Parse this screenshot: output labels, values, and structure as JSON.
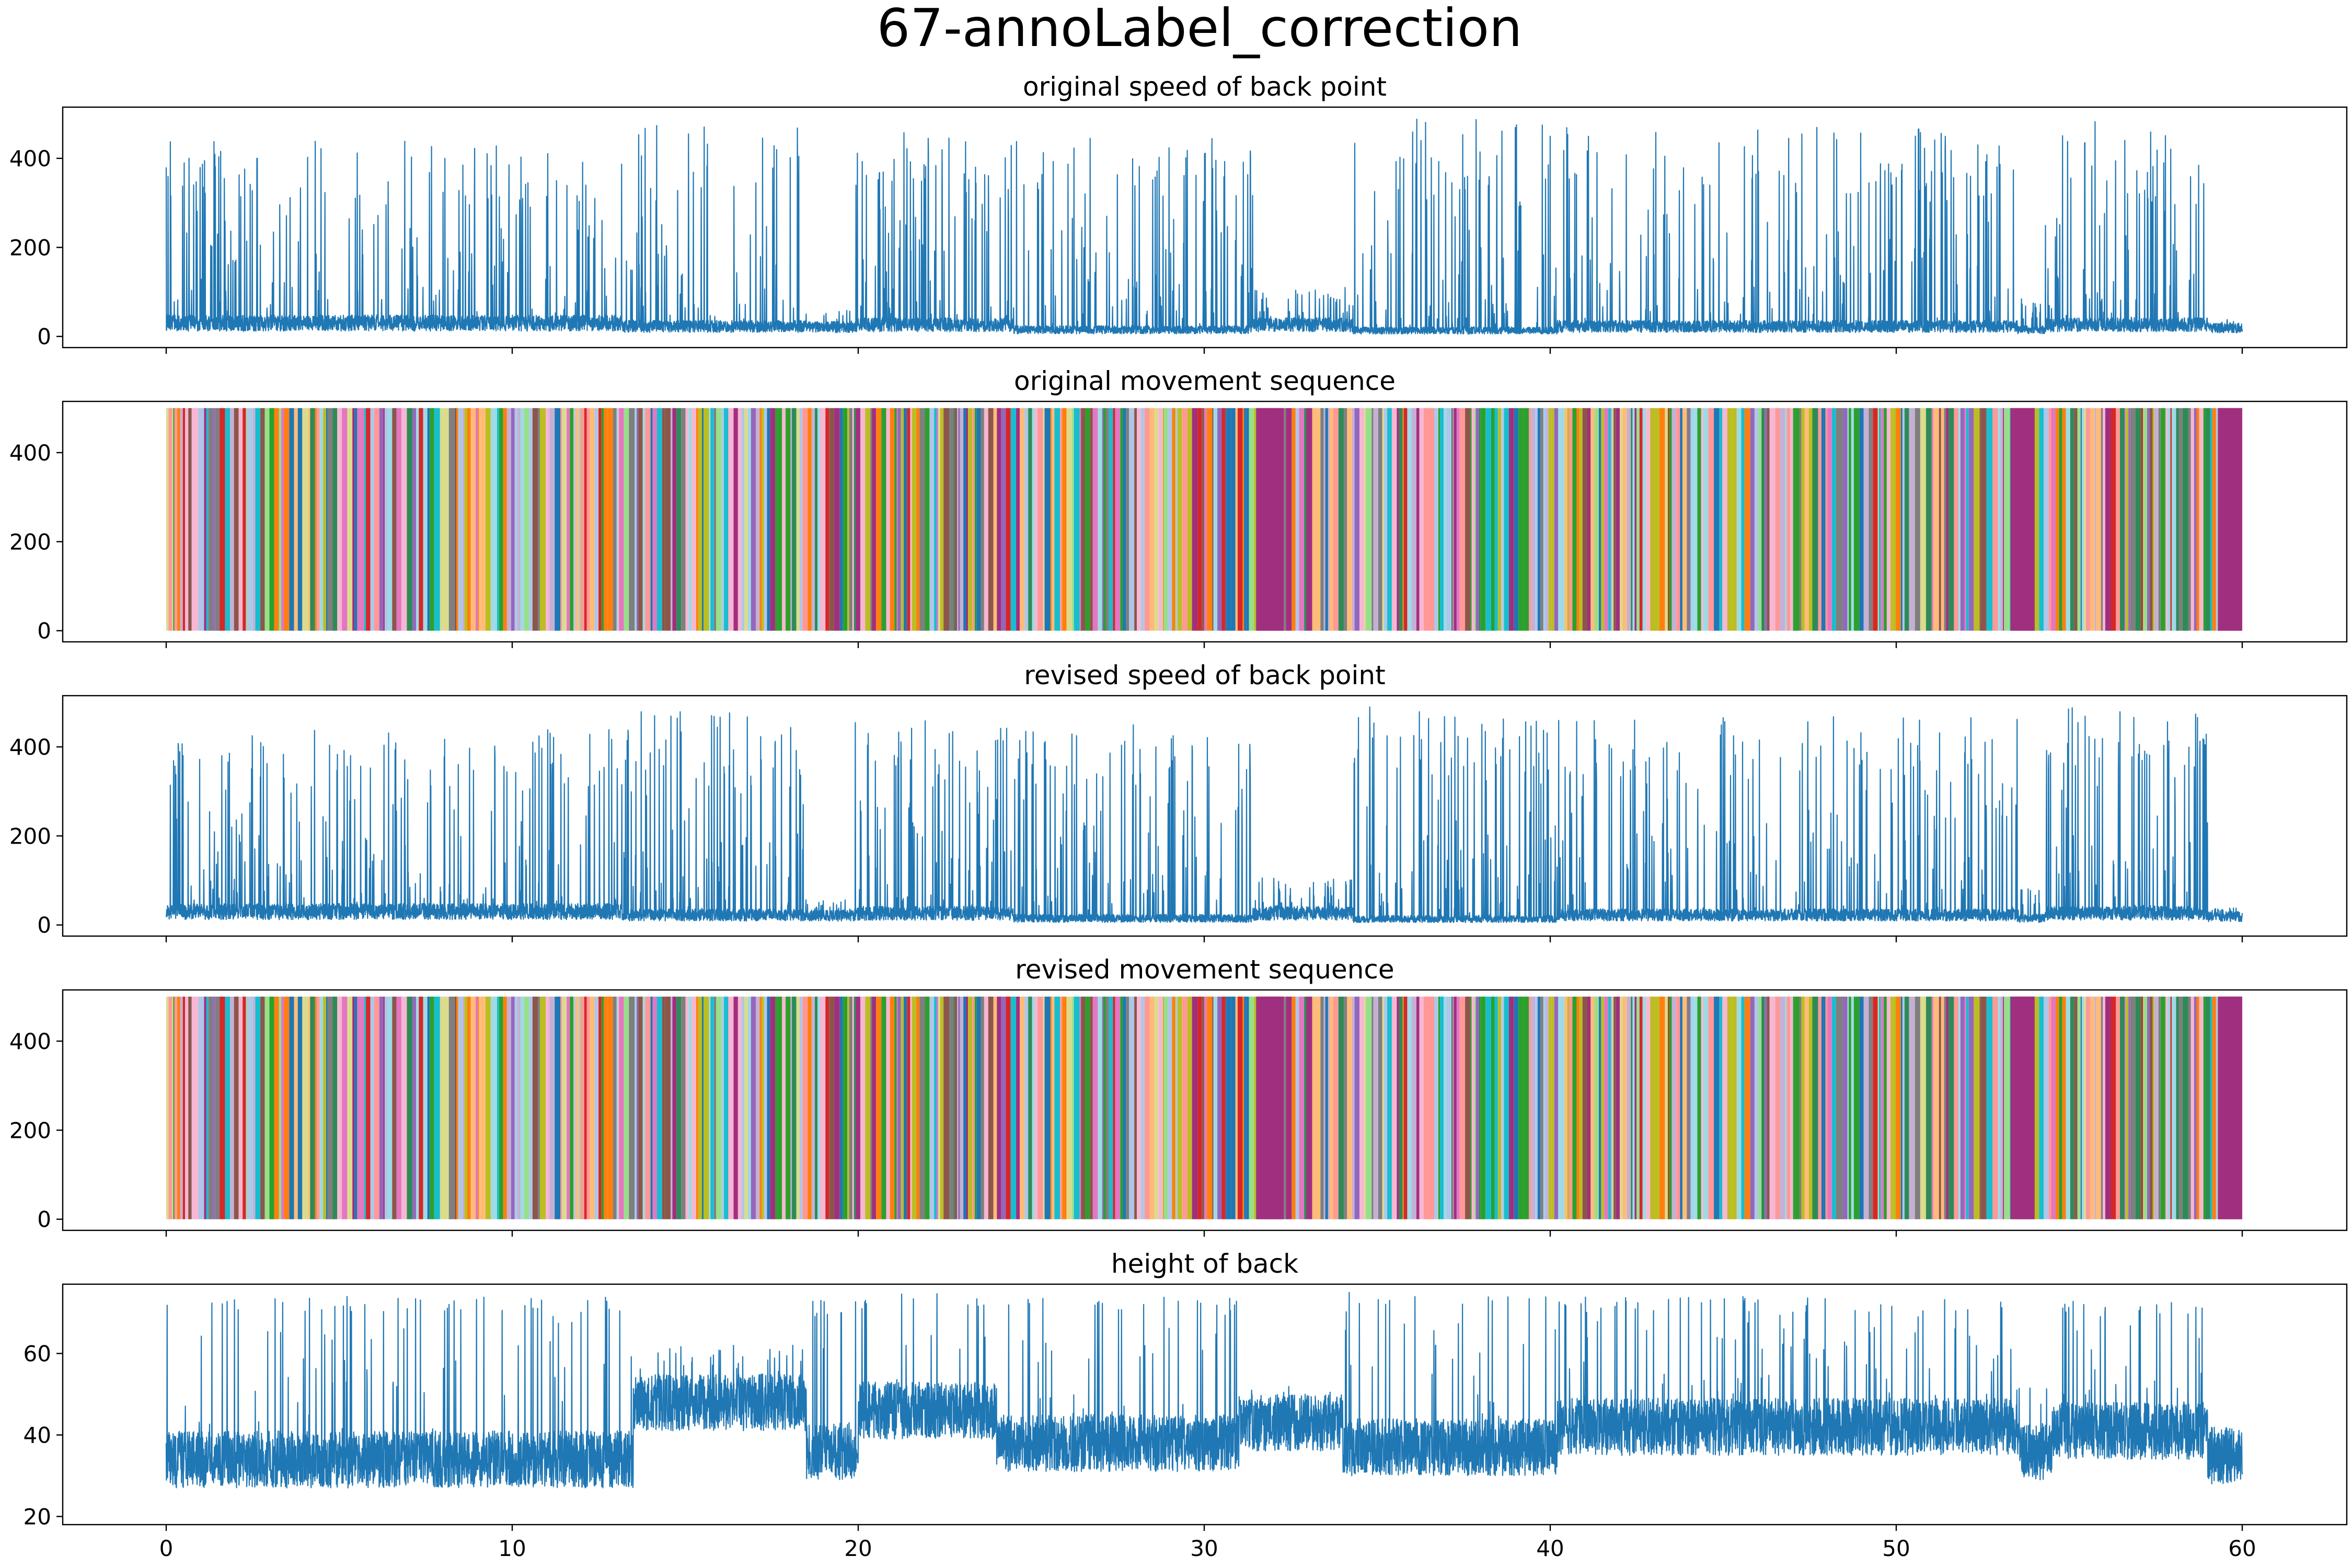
{
  "figure_title": "67-annoLabel_correction",
  "colors": {
    "line": "#1f77b4",
    "palette": [
      "#1f77b4",
      "#ff7f0e",
      "#2ca02c",
      "#d62728",
      "#9467bd",
      "#8c564b",
      "#e377c2",
      "#7f7f7f",
      "#bcbd22",
      "#17becf",
      "#aec7e8",
      "#ffbb78",
      "#98df8a",
      "#ff9896",
      "#c5b0d5",
      "#f7b6d2",
      "#dbdb8d",
      "#9edae5",
      "#2e8b57",
      "#a0307f"
    ]
  },
  "chart_data": [
    {
      "type": "line",
      "title": "original speed of back point",
      "x_range": [
        0,
        60
      ],
      "ylim": [
        -25,
        515
      ],
      "yticks": [
        0,
        200,
        400
      ],
      "xticks": [
        0,
        10,
        20,
        30,
        40,
        50,
        60
      ],
      "show_xtick_labels": false,
      "series": [
        {
          "x_segments": [
            [
              0,
              13.2
            ],
            [
              13.2,
              18.5
            ],
            [
              18.5,
              19.9
            ],
            [
              19.9,
              24.5
            ],
            [
              24.5,
              31.4
            ],
            [
              31.4,
              34.3
            ],
            [
              34.3,
              40.2
            ],
            [
              40.2,
              53.5
            ],
            [
              53.5,
              54.3
            ],
            [
              54.3,
              59.0
            ],
            [
              59.0,
              60
            ]
          ],
          "baseline_per_segment": [
            40,
            30,
            28,
            35,
            20,
            35,
            18,
            30,
            20,
            35,
            25
          ],
          "peak_per_segment": [
            440,
            480,
            60,
            460,
            450,
            110,
            490,
            470,
            90,
            490,
            40
          ],
          "y_max_observed": 490
        }
      ]
    },
    {
      "type": "heatmap",
      "title": "original movement sequence",
      "x_range": [
        0,
        60
      ],
      "ylim": [
        -25,
        515
      ],
      "bar_top": 500,
      "yticks": [
        0,
        200,
        400
      ],
      "xticks": [
        0,
        10,
        20,
        30,
        40,
        50,
        60
      ],
      "show_xtick_labels": false,
      "dominant_blocks": [
        {
          "x_start": 31.5,
          "x_end": 32.3,
          "label_color": "#a0307f"
        },
        {
          "x_start": 53.3,
          "x_end": 54.0,
          "label_color": "#a0307f"
        },
        {
          "x_start": 59.3,
          "x_end": 60.0,
          "label_color": "#a0307f"
        }
      ]
    },
    {
      "type": "line",
      "title": "revised speed of back point",
      "x_range": [
        0,
        60
      ],
      "ylim": [
        -25,
        515
      ],
      "yticks": [
        0,
        200,
        400
      ],
      "xticks": [
        0,
        10,
        20,
        30,
        40,
        50,
        60
      ],
      "show_xtick_labels": false,
      "series": [
        {
          "x_segments": [
            [
              0,
              13.2
            ],
            [
              13.2,
              18.5
            ],
            [
              18.5,
              19.9
            ],
            [
              19.9,
              24.5
            ],
            [
              24.5,
              31.4
            ],
            [
              31.4,
              34.3
            ],
            [
              34.3,
              40.2
            ],
            [
              40.2,
              53.5
            ],
            [
              53.5,
              54.3
            ],
            [
              54.3,
              59.0
            ],
            [
              59.0,
              60
            ]
          ],
          "baseline_per_segment": [
            40,
            30,
            28,
            35,
            20,
            35,
            18,
            30,
            20,
            35,
            25
          ],
          "peak_per_segment": [
            440,
            480,
            60,
            460,
            450,
            110,
            490,
            470,
            90,
            490,
            40
          ],
          "y_max_observed": 490
        }
      ]
    },
    {
      "type": "heatmap",
      "title": "revised movement sequence",
      "x_range": [
        0,
        60
      ],
      "ylim": [
        -25,
        515
      ],
      "bar_top": 500,
      "yticks": [
        0,
        200,
        400
      ],
      "xticks": [
        0,
        10,
        20,
        30,
        40,
        50,
        60
      ],
      "show_xtick_labels": false,
      "dominant_blocks": [
        {
          "x_start": 31.5,
          "x_end": 32.3,
          "label_color": "#a0307f"
        },
        {
          "x_start": 53.3,
          "x_end": 54.0,
          "label_color": "#a0307f"
        },
        {
          "x_start": 59.3,
          "x_end": 60.0,
          "label_color": "#a0307f"
        }
      ]
    },
    {
      "type": "line",
      "title": "height of back",
      "x_range": [
        0,
        60
      ],
      "ylim": [
        18,
        77
      ],
      "yticks": [
        20,
        40,
        60
      ],
      "xticks": [
        0,
        10,
        20,
        30,
        40,
        50,
        60
      ],
      "xtick_labels": [
        "0",
        "10",
        "20",
        "30",
        "40",
        "50",
        "60"
      ],
      "show_xtick_labels": true,
      "series": [
        {
          "x_segments": [
            [
              0,
              13.5
            ],
            [
              13.5,
              18.5
            ],
            [
              18.5,
              20.0
            ],
            [
              20.0,
              24.0
            ],
            [
              24.0,
              31.0
            ],
            [
              31.0,
              34.0
            ],
            [
              34.0,
              40.2
            ],
            [
              40.2,
              53.5
            ],
            [
              53.5,
              54.5
            ],
            [
              54.5,
              59.0
            ],
            [
              59.0,
              60
            ]
          ],
          "baseline_per_segment": [
            34,
            48,
            36,
            46,
            38,
            43,
            37,
            42,
            36,
            41,
            35
          ],
          "peak_per_segment": [
            74,
            62,
            73,
            75,
            74,
            52,
            75,
            74,
            55,
            73,
            45
          ],
          "y_min_observed": 22
        }
      ]
    }
  ]
}
